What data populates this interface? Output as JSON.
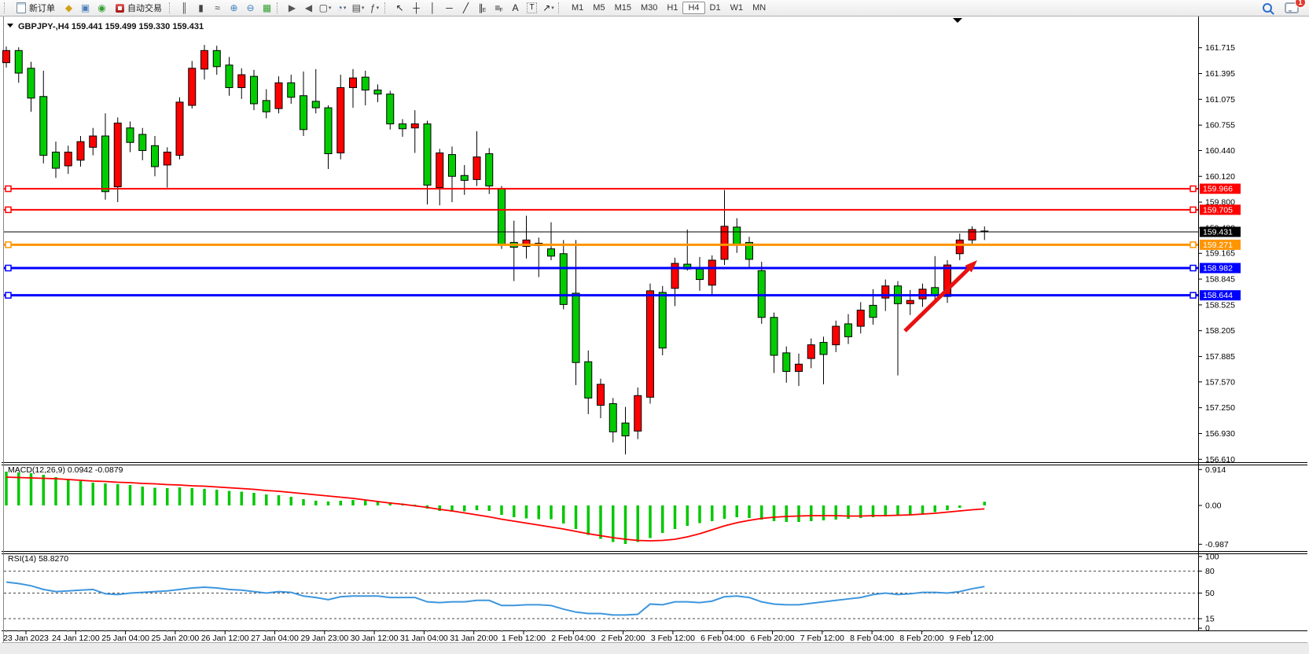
{
  "toolbar": {
    "new_order_label": "新订单",
    "auto_trading_label": "自动交易",
    "chat_badge": "1",
    "active_timeframe": "H4",
    "timeframes": [
      "M1",
      "M5",
      "M15",
      "M30",
      "H1",
      "H4",
      "D1",
      "W1",
      "MN"
    ],
    "groups": [
      {
        "grip": true,
        "items": [
          {
            "name": "new-order-button",
            "type": "label-button",
            "icon": "doc-icon",
            "label": "新订单"
          }
        ]
      },
      {
        "grip": false,
        "items": [
          {
            "name": "market-watch-icon",
            "type": "glyph",
            "glyph": "◆",
            "color": "#d4a017"
          },
          {
            "name": "data-window-icon",
            "type": "glyph",
            "glyph": "▣",
            "color": "#4a7ebb"
          },
          {
            "name": "navigator-icon",
            "type": "glyph",
            "glyph": "◉",
            "color": "#33a033"
          },
          {
            "name": "auto-trading-button",
            "type": "label-button",
            "icon": "at-icon",
            "label": "自动交易"
          }
        ]
      },
      {
        "grip": true,
        "items": [
          {
            "name": "bar-chart-icon",
            "type": "glyph",
            "glyph": "║",
            "color": "#444444"
          },
          {
            "name": "candlestick-chart-icon",
            "type": "glyph",
            "glyph": "▮",
            "color": "#444444"
          },
          {
            "name": "line-chart-icon",
            "type": "glyph",
            "glyph": "≈",
            "color": "#444444"
          }
        ]
      },
      {
        "grip": false,
        "items": [
          {
            "name": "zoom-in-icon",
            "type": "glyph",
            "glyph": "⊕",
            "color": "#3a7ebf"
          },
          {
            "name": "zoom-out-icon",
            "type": "glyph",
            "glyph": "⊖",
            "color": "#3a7ebf"
          },
          {
            "name": "tile-windows-icon",
            "type": "glyph",
            "glyph": "▦",
            "color": "#2e9e2e"
          }
        ]
      },
      {
        "grip": true,
        "items": [
          {
            "name": "auto-scroll-icon",
            "type": "glyph",
            "glyph": "▶",
            "color": "#555555"
          },
          {
            "name": "chart-shift-icon",
            "type": "glyph",
            "glyph": "◀",
            "color": "#555555"
          }
        ]
      },
      {
        "grip": false,
        "items": [
          {
            "name": "new-chart-button",
            "type": "glyph",
            "glyph": "▢",
            "color": "#444444",
            "caret": true
          },
          {
            "name": "profiles-button",
            "type": "glyph",
            "glyph": "◔",
            "color": "#2f5fa3",
            "caret": true
          },
          {
            "name": "templates-button",
            "type": "glyph",
            "glyph": "▤",
            "color": "#444444",
            "caret": true
          }
        ]
      },
      {
        "grip": false,
        "items": [
          {
            "name": "indicators-button",
            "type": "glyph",
            "glyph": "ƒ",
            "color": "#444444",
            "caret": true
          }
        ]
      },
      {
        "grip": true,
        "items": [
          {
            "name": "cursor-icon",
            "type": "glyph",
            "glyph": "↖",
            "color": "#222222"
          },
          {
            "name": "crosshair-icon",
            "type": "glyph",
            "glyph": "┼",
            "color": "#222222"
          }
        ]
      },
      {
        "grip": false,
        "items": [
          {
            "name": "vertical-line-icon",
            "type": "glyph",
            "glyph": "│",
            "color": "#222222"
          },
          {
            "name": "horizontal-line-icon",
            "type": "glyph",
            "glyph": "─",
            "color": "#222222"
          },
          {
            "name": "trendline-icon",
            "type": "glyph",
            "glyph": "╱",
            "color": "#222222"
          },
          {
            "name": "equidistant-channel-icon",
            "type": "glyph",
            "glyph": "∥",
            "sub": "E",
            "color": "#222222"
          },
          {
            "name": "fibonacci-icon",
            "type": "glyph",
            "glyph": "≡",
            "sub": "F",
            "color": "#222222"
          },
          {
            "name": "text-icon",
            "type": "glyph",
            "glyph": "A",
            "color": "#222222"
          },
          {
            "name": "text-label-icon",
            "type": "boxed",
            "glyph": "T",
            "color": "#222222"
          },
          {
            "name": "arrows-button",
            "type": "glyph",
            "glyph": "↗",
            "color": "#222222",
            "caret": true
          }
        ]
      }
    ]
  },
  "chart": {
    "title_symbol": "GBPJPY-,H4",
    "title_ohlc": "159.441 159.499 159.330 159.431",
    "current_bar": {
      "open": "159.441",
      "high": "159.499",
      "low": "159.330",
      "close": "159.431"
    },
    "price_axis": [
      "161.715",
      "161.395",
      "161.075",
      "160.755",
      "160.440",
      "160.120",
      "159.800",
      "159.480",
      "159.165",
      "158.845",
      "158.525",
      "158.205",
      "157.885",
      "157.570",
      "157.250",
      "156.930",
      "156.610"
    ],
    "time_axis": [
      "23 Jan 2023",
      "24 Jan 12:00",
      "25 Jan 04:00",
      "25 Jan 20:00",
      "26 Jan 12:00",
      "27 Jan 04:00",
      "29 Jan 23:00",
      "30 Jan 12:00",
      "31 Jan 04:00",
      "31 Jan 20:00",
      "1 Feb 12:00",
      "2 Feb 04:00",
      "2 Feb 20:00",
      "3 Feb 12:00",
      "6 Feb 04:00",
      "6 Feb 20:00",
      "7 Feb 12:00",
      "8 Feb 04:00",
      "8 Feb 20:00",
      "9 Feb 12:00"
    ],
    "level_lines": [
      {
        "price": 159.966,
        "label": "159.966",
        "color": "#ff0000",
        "width": 2,
        "handles": true
      },
      {
        "price": 159.705,
        "label": "159.705",
        "color": "#ff0000",
        "width": 2,
        "handles": true
      },
      {
        "price": 159.431,
        "label": "159.431",
        "color": "#000000",
        "width": 1,
        "handles": false
      },
      {
        "price": 159.271,
        "label": "159.271",
        "color": "#ff9500",
        "width": 3,
        "handles": true
      },
      {
        "price": 158.982,
        "label": "158.982",
        "color": "#0000ff",
        "width": 3,
        "handles": true
      },
      {
        "price": 158.644,
        "label": "158.644",
        "color": "#0000ff",
        "width": 3,
        "handles": true
      }
    ],
    "colors": {
      "red_candle": "#ff0000",
      "green_candle": "#00cc00",
      "wick": "#000000",
      "macd_histogram": "#00c800",
      "macd_signal": "#ff0000",
      "rsi_line": "#3e96dd",
      "arrow": "#e81010",
      "axis_text": "#000000"
    }
  },
  "chart_data": {
    "type": "candlestick",
    "symbol": "GBPJPY-",
    "period": "H4",
    "candle_format": [
      "body_top",
      "body_bottom",
      "high",
      "low",
      "color r=red g=green"
    ],
    "candles": [
      [
        161.68,
        161.53,
        161.73,
        161.47,
        "r"
      ],
      [
        161.68,
        161.4,
        161.72,
        161.28,
        "g"
      ],
      [
        161.46,
        161.09,
        161.54,
        160.92,
        "g"
      ],
      [
        161.11,
        160.38,
        161.43,
        160.28,
        "g"
      ],
      [
        160.42,
        160.22,
        160.55,
        160.1,
        "g"
      ],
      [
        160.42,
        160.25,
        160.5,
        160.15,
        "r"
      ],
      [
        160.55,
        160.32,
        160.62,
        160.24,
        "r"
      ],
      [
        160.62,
        160.48,
        160.72,
        160.38,
        "r"
      ],
      [
        160.62,
        159.93,
        160.9,
        159.83,
        "g"
      ],
      [
        160.78,
        159.99,
        160.85,
        159.8,
        "r"
      ],
      [
        160.72,
        160.54,
        160.8,
        160.42,
        "g"
      ],
      [
        160.64,
        160.44,
        160.72,
        160.32,
        "g"
      ],
      [
        160.5,
        160.24,
        160.62,
        160.12,
        "g"
      ],
      [
        160.42,
        160.26,
        160.48,
        159.98,
        "r"
      ],
      [
        161.04,
        160.38,
        161.1,
        160.33,
        "r"
      ],
      [
        161.46,
        161.0,
        161.55,
        160.96,
        "r"
      ],
      [
        161.68,
        161.45,
        161.75,
        161.32,
        "r"
      ],
      [
        161.68,
        161.48,
        161.74,
        161.38,
        "g"
      ],
      [
        161.5,
        161.22,
        161.6,
        161.12,
        "g"
      ],
      [
        161.38,
        161.22,
        161.46,
        161.08,
        "r"
      ],
      [
        161.36,
        161.02,
        161.44,
        160.94,
        "g"
      ],
      [
        161.06,
        160.92,
        161.2,
        160.84,
        "g"
      ],
      [
        161.28,
        160.96,
        161.36,
        160.9,
        "r"
      ],
      [
        161.28,
        161.1,
        161.38,
        161.02,
        "g"
      ],
      [
        161.12,
        160.7,
        161.42,
        160.62,
        "g"
      ],
      [
        161.05,
        160.97,
        161.45,
        160.9,
        "g"
      ],
      [
        160.97,
        160.4,
        161.0,
        160.21,
        "g"
      ],
      [
        161.22,
        160.41,
        161.38,
        160.33,
        "r"
      ],
      [
        161.34,
        161.22,
        161.45,
        160.97,
        "r"
      ],
      [
        161.35,
        161.19,
        161.43,
        161.0,
        "g"
      ],
      [
        161.19,
        161.14,
        161.26,
        161.04,
        "g"
      ],
      [
        161.14,
        160.77,
        161.18,
        160.7,
        "g"
      ],
      [
        160.77,
        160.71,
        160.83,
        160.61,
        "g"
      ],
      [
        160.77,
        160.72,
        160.94,
        160.41,
        "r"
      ],
      [
        160.77,
        160.01,
        160.81,
        159.77,
        "g"
      ],
      [
        160.41,
        159.98,
        160.46,
        159.76,
        "r"
      ],
      [
        160.39,
        160.12,
        160.49,
        159.8,
        "g"
      ],
      [
        160.13,
        160.07,
        160.26,
        159.89,
        "g"
      ],
      [
        160.36,
        160.08,
        160.68,
        160.0,
        "r"
      ],
      [
        160.4,
        160.0,
        160.47,
        159.9,
        "g"
      ],
      [
        159.97,
        159.27,
        160.0,
        159.22,
        "g"
      ],
      [
        159.3,
        159.24,
        159.57,
        158.82,
        "g"
      ],
      [
        159.33,
        159.25,
        159.63,
        159.1,
        "r"
      ],
      [
        159.29,
        159.26,
        159.36,
        158.87,
        "r"
      ],
      [
        159.22,
        159.13,
        159.55,
        159.08,
        "g"
      ],
      [
        159.16,
        158.53,
        159.33,
        158.47,
        "g"
      ],
      [
        158.67,
        157.81,
        159.33,
        157.53,
        "g"
      ],
      [
        157.82,
        157.37,
        157.96,
        157.17,
        "g"
      ],
      [
        157.54,
        157.28,
        157.61,
        157.12,
        "r"
      ],
      [
        157.3,
        156.95,
        157.37,
        156.82,
        "g"
      ],
      [
        157.06,
        156.9,
        157.26,
        156.67,
        "g"
      ],
      [
        157.4,
        156.96,
        157.5,
        156.86,
        "r"
      ],
      [
        158.7,
        157.38,
        158.79,
        157.3,
        "r"
      ],
      [
        158.68,
        157.99,
        158.76,
        157.9,
        "g"
      ],
      [
        159.04,
        158.73,
        159.11,
        158.51,
        "r"
      ],
      [
        159.03,
        158.97,
        159.46,
        158.95,
        "g"
      ],
      [
        158.97,
        158.84,
        159.12,
        158.7,
        "g"
      ],
      [
        159.08,
        158.77,
        159.14,
        158.65,
        "r"
      ],
      [
        159.5,
        159.09,
        159.95,
        159.02,
        "r"
      ],
      [
        159.49,
        159.27,
        159.6,
        159.17,
        "g"
      ],
      [
        159.3,
        159.09,
        159.37,
        158.99,
        "g"
      ],
      [
        158.95,
        158.37,
        159.06,
        158.29,
        "g"
      ],
      [
        158.37,
        157.9,
        158.43,
        157.68,
        "g"
      ],
      [
        157.93,
        157.7,
        158.01,
        157.56,
        "g"
      ],
      [
        157.79,
        157.7,
        157.92,
        157.52,
        "r"
      ],
      [
        158.03,
        157.86,
        158.11,
        157.74,
        "r"
      ],
      [
        158.06,
        157.91,
        158.13,
        157.54,
        "g"
      ],
      [
        158.26,
        158.03,
        158.33,
        157.94,
        "r"
      ],
      [
        158.29,
        158.13,
        158.41,
        158.04,
        "g"
      ],
      [
        158.46,
        158.26,
        158.56,
        158.17,
        "r"
      ],
      [
        158.52,
        158.37,
        158.72,
        158.28,
        "g"
      ],
      [
        158.76,
        158.61,
        158.84,
        158.45,
        "r"
      ],
      [
        158.76,
        158.54,
        158.82,
        157.65,
        "g"
      ],
      [
        158.58,
        158.54,
        158.71,
        158.4,
        "r"
      ],
      [
        158.72,
        158.6,
        158.79,
        158.5,
        "r"
      ],
      [
        158.74,
        158.64,
        159.13,
        158.54,
        "g"
      ],
      [
        159.02,
        158.63,
        159.08,
        158.55,
        "r"
      ],
      [
        159.33,
        159.16,
        159.41,
        159.08,
        "r"
      ],
      [
        159.46,
        159.33,
        159.5,
        159.26,
        "r"
      ],
      [
        159.441,
        159.431,
        159.499,
        159.33,
        "r"
      ]
    ],
    "macd": {
      "label": "MACD(12,26,9)",
      "value_text": "0.0942 -0.0879",
      "scale": [
        "0.914",
        "0.00",
        "-0.987"
      ],
      "histogram": [
        0.86,
        0.84,
        0.82,
        0.78,
        0.72,
        0.66,
        0.62,
        0.58,
        0.56,
        0.54,
        0.52,
        0.48,
        0.45,
        0.44,
        0.46,
        0.44,
        0.42,
        0.4,
        0.37,
        0.35,
        0.32,
        0.28,
        0.26,
        0.22,
        0.16,
        0.12,
        0.1,
        0.12,
        0.14,
        0.12,
        0.1,
        0.08,
        0.05,
        0.02,
        -0.08,
        -0.14,
        -0.16,
        -0.15,
        -0.12,
        -0.14,
        -0.24,
        -0.3,
        -0.33,
        -0.35,
        -0.35,
        -0.46,
        -0.6,
        -0.75,
        -0.85,
        -0.93,
        -0.98,
        -0.93,
        -0.83,
        -0.7,
        -0.6,
        -0.52,
        -0.45,
        -0.4,
        -0.34,
        -0.3,
        -0.32,
        -0.36,
        -0.4,
        -0.42,
        -0.42,
        -0.4,
        -0.38,
        -0.36,
        -0.34,
        -0.32,
        -0.3,
        -0.28,
        -0.26,
        -0.24,
        -0.21,
        -0.17,
        -0.12,
        -0.06,
        0.0,
        0.094
      ],
      "signal": [
        0.72,
        0.71,
        0.7,
        0.69,
        0.68,
        0.66,
        0.64,
        0.62,
        0.61,
        0.59,
        0.58,
        0.56,
        0.55,
        0.53,
        0.52,
        0.5,
        0.49,
        0.47,
        0.45,
        0.43,
        0.41,
        0.38,
        0.36,
        0.33,
        0.3,
        0.27,
        0.24,
        0.21,
        0.18,
        0.14,
        0.1,
        0.06,
        0.03,
        -0.01,
        -0.05,
        -0.1,
        -0.14,
        -0.19,
        -0.24,
        -0.29,
        -0.35,
        -0.4,
        -0.45,
        -0.5,
        -0.55,
        -0.6,
        -0.66,
        -0.72,
        -0.77,
        -0.82,
        -0.86,
        -0.89,
        -0.9,
        -0.89,
        -0.86,
        -0.8,
        -0.72,
        -0.62,
        -0.52,
        -0.44,
        -0.38,
        -0.33,
        -0.3,
        -0.28,
        -0.27,
        -0.26,
        -0.26,
        -0.26,
        -0.27,
        -0.27,
        -0.26,
        -0.26,
        -0.25,
        -0.24,
        -0.22,
        -0.2,
        -0.17,
        -0.14,
        -0.11,
        -0.088
      ]
    },
    "rsi": {
      "label": "RSI(14)",
      "value_text": "58.8270",
      "scale": [
        "100",
        "80",
        "50",
        "15",
        "0"
      ],
      "levels": [
        80,
        50,
        15
      ],
      "values": [
        65,
        63,
        60,
        55,
        52,
        53,
        54,
        55,
        49,
        48,
        50,
        51,
        52,
        53,
        55,
        57,
        58,
        57,
        55,
        54,
        52,
        50,
        52,
        51,
        46,
        44,
        41,
        45,
        46,
        46,
        46,
        44,
        44,
        44,
        38,
        37,
        38,
        38,
        40,
        40,
        33,
        33,
        34,
        34,
        33,
        28,
        24,
        22,
        22,
        20,
        20,
        21,
        35,
        34,
        38,
        38,
        37,
        39,
        45,
        46,
        44,
        38,
        35,
        34,
        34,
        36,
        38,
        40,
        42,
        44,
        48,
        50,
        48,
        49,
        51,
        51,
        50,
        52,
        56,
        58.83
      ]
    }
  }
}
